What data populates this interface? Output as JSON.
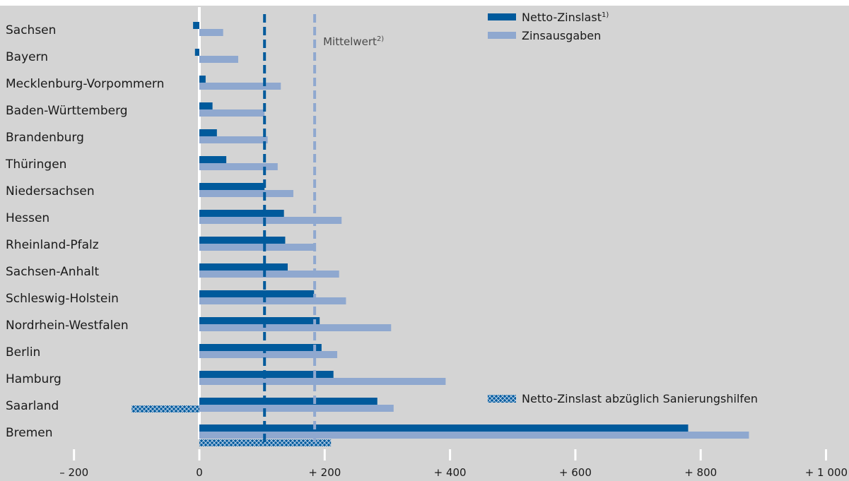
{
  "chart_data": {
    "type": "bar",
    "orientation": "horizontal",
    "categories": [
      "Sachsen",
      "Bayern",
      "Mecklenburg-Vorpommern",
      "Baden-Württemberg",
      "Brandenburg",
      "Thüringen",
      "Niedersachsen",
      "Hessen",
      "Rheinland-Pfalz",
      "Sachsen-Anhalt",
      "Schleswig-Holstein",
      "Nordrhein-Westfalen",
      "Berlin",
      "Hamburg",
      "Saarland",
      "Bremen"
    ],
    "series": [
      {
        "name": "Netto-Zinslast",
        "superscript": "1)",
        "color": "#005a9c",
        "values": [
          -10,
          -7,
          10,
          21,
          28,
          43,
          104,
          135,
          137,
          141,
          183,
          192,
          195,
          214,
          284,
          780
        ]
      },
      {
        "name": "Zinsausgaben",
        "color": "#8fa8cf",
        "values": [
          38,
          62,
          130,
          104,
          109,
          125,
          150,
          227,
          183,
          223,
          234,
          306,
          220,
          393,
          310,
          877
        ]
      },
      {
        "name": "Netto-Zinslast abzüglich Sanierungshilfen",
        "color": "#005a9c",
        "pattern": "crosshatch",
        "values": [
          null,
          null,
          null,
          null,
          null,
          null,
          null,
          null,
          null,
          null,
          null,
          null,
          null,
          null,
          -108,
          210
        ]
      }
    ],
    "reference_lines": [
      {
        "value": 104,
        "label": "",
        "color": "#005a9c",
        "style": "dashed"
      },
      {
        "value": 184,
        "label": "Mittelwert",
        "superscript": "2)",
        "color": "#8fa8cf",
        "style": "dashed"
      }
    ],
    "x_ticks": [
      -200,
      0,
      200,
      400,
      600,
      800,
      1000
    ],
    "x_tick_labels": [
      "– 200",
      "0",
      "+ 200",
      "+ 400",
      "+ 600",
      "+ 800",
      "+ 1 000"
    ],
    "xlim": [
      -225,
      1000
    ],
    "legend_position": "top-right"
  }
}
